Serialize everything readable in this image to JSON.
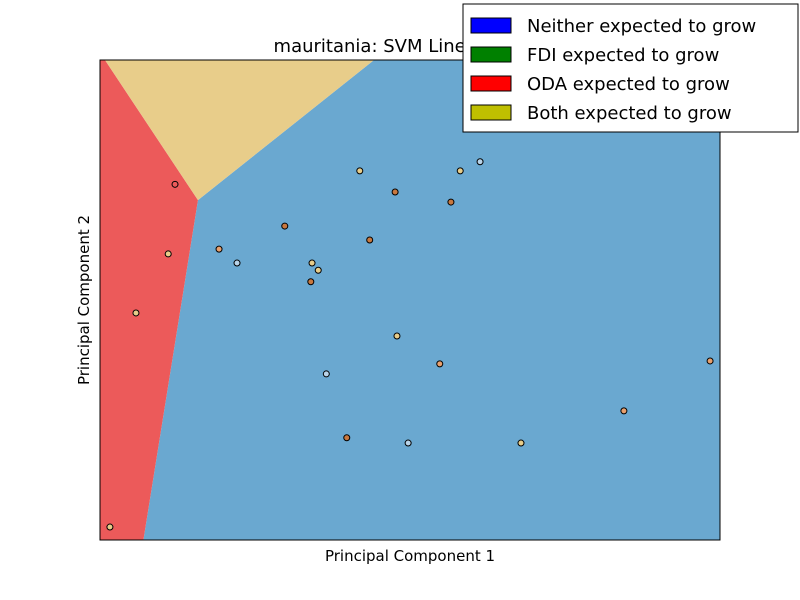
{
  "chart_data": {
    "type": "scatter",
    "title": "mauritania: SVM Linear Kernel",
    "xlabel": "Principal Component 1",
    "ylabel": "Principal Component 2",
    "xlim": [
      0,
      100
    ],
    "ylim": [
      0,
      100
    ],
    "ticks": "none",
    "grid": false,
    "legend_position": "top-right",
    "legend": [
      {
        "label": "Neither expected to grow",
        "color": "#0000ff"
      },
      {
        "label": "FDI expected to grow",
        "color": "#008000"
      },
      {
        "label": "ODA expected to grow",
        "color": "#ff0000"
      },
      {
        "label": "Both expected to grow",
        "color": "#bfbf00"
      }
    ],
    "regions": [
      {
        "class": "Neither expected to grow",
        "color": "#6aa8d0",
        "polygon": [
          [
            44.2,
            100
          ],
          [
            100,
            100
          ],
          [
            100,
            0
          ],
          [
            7,
            0
          ],
          [
            15.8,
            70.8
          ]
        ]
      },
      {
        "class": "ODA expected to grow",
        "color": "#ec5a5a",
        "polygon": [
          [
            0,
            0
          ],
          [
            7,
            0
          ],
          [
            15.8,
            70.8
          ],
          [
            0.8,
            100
          ],
          [
            0,
            100
          ]
        ]
      },
      {
        "class": "Both expected to grow",
        "color": "#e8cd8a",
        "polygon": [
          [
            0.8,
            100
          ],
          [
            44.2,
            100
          ],
          [
            15.8,
            70.8
          ]
        ]
      }
    ],
    "points": [
      {
        "x": 12.1,
        "y": 74.1,
        "color": "#ec5a5a"
      },
      {
        "x": 11.0,
        "y": 59.6,
        "color": "#e8cd8a"
      },
      {
        "x": 5.8,
        "y": 47.3,
        "color": "#e8cd8a"
      },
      {
        "x": 1.6,
        "y": 2.7,
        "color": "#e8cd8a"
      },
      {
        "x": 19.2,
        "y": 60.6,
        "color": "#e8a06e"
      },
      {
        "x": 22.1,
        "y": 57.7,
        "color": "#b9d4e9"
      },
      {
        "x": 29.8,
        "y": 65.4,
        "color": "#c8783f"
      },
      {
        "x": 34.2,
        "y": 57.7,
        "color": "#e8cd8a"
      },
      {
        "x": 35.2,
        "y": 56.2,
        "color": "#e8cd8a"
      },
      {
        "x": 34.0,
        "y": 53.8,
        "color": "#c8783f"
      },
      {
        "x": 41.9,
        "y": 76.9,
        "color": "#e8cd8a"
      },
      {
        "x": 47.6,
        "y": 72.5,
        "color": "#c8783f"
      },
      {
        "x": 43.5,
        "y": 62.5,
        "color": "#c8783f"
      },
      {
        "x": 56.6,
        "y": 70.4,
        "color": "#c8783f"
      },
      {
        "x": 58.1,
        "y": 76.9,
        "color": "#e8cd8a"
      },
      {
        "x": 61.3,
        "y": 78.8,
        "color": "#b9d4e9"
      },
      {
        "x": 47.9,
        "y": 42.5,
        "color": "#e8cd8a"
      },
      {
        "x": 36.5,
        "y": 34.6,
        "color": "#b9d4e9"
      },
      {
        "x": 54.8,
        "y": 36.7,
        "color": "#e8a06e"
      },
      {
        "x": 98.4,
        "y": 37.3,
        "color": "#e8a06e"
      },
      {
        "x": 84.5,
        "y": 26.9,
        "color": "#e8a06e"
      },
      {
        "x": 39.8,
        "y": 21.3,
        "color": "#c8783f"
      },
      {
        "x": 49.7,
        "y": 20.2,
        "color": "#b9d4e9"
      },
      {
        "x": 67.9,
        "y": 20.2,
        "color": "#e8cd8a"
      }
    ]
  }
}
